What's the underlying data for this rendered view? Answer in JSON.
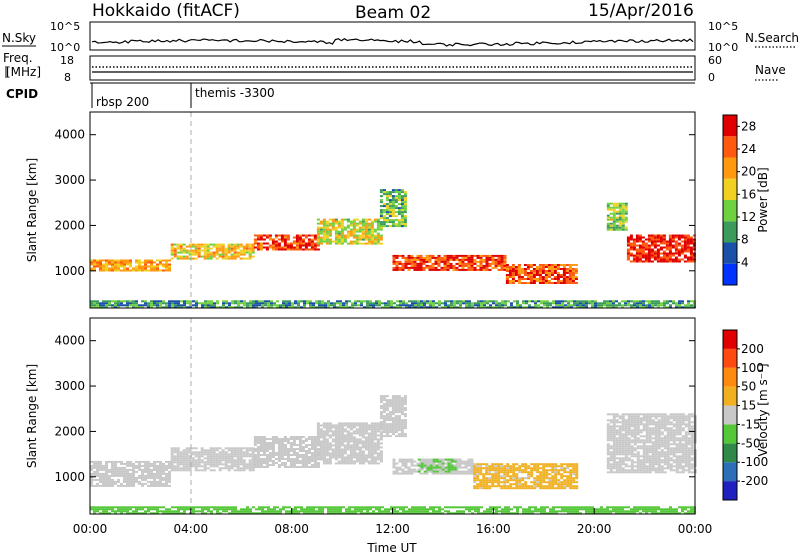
{
  "header": {
    "radar": "Hokkaido (fitACF)",
    "beam": "Beam 02",
    "date": "15/Apr/2016"
  },
  "strip_panels": {
    "nsky": {
      "left_label": "N.Sky",
      "left_ticks": [
        "10^5",
        "10^0"
      ],
      "right_label": "N.Search",
      "right_ticks": [
        "10^5",
        "10^0"
      ]
    },
    "freq": {
      "left_label_line1": "Freq.",
      "left_label_line2": "[MHz]",
      "left_ticks": [
        "18",
        "8"
      ],
      "right_label": "Nave",
      "right_ticks": [
        "60",
        "0"
      ]
    },
    "cpid": {
      "label": "CPID",
      "segments": [
        {
          "label": "rbsp 200",
          "start_hour": 0.0
        },
        {
          "label": "themis -3300",
          "start_hour": 4.0
        }
      ]
    }
  },
  "colors": {
    "power_scale": [
      "#0033ff",
      "#1a50a8",
      "#3b9b5b",
      "#6fd13f",
      "#f0d020",
      "#ff9a10",
      "#ff5a10",
      "#e00000"
    ],
    "velocity_scale": [
      "#2020c0",
      "#2a6fb8",
      "#2f8a4a",
      "#55c83a",
      "#c8c8c8",
      "#f0b020",
      "#ff8a10",
      "#ff4a10",
      "#e00000"
    ]
  },
  "chart_data": [
    {
      "type": "heatmap",
      "panel": "power",
      "xlabel": "",
      "ylabel": "Slant Range [km]",
      "xlim_hours": [
        0,
        24
      ],
      "ylim": [
        180,
        4500
      ],
      "y_ticks": [
        1000,
        2000,
        3000,
        4000
      ],
      "colorbar": {
        "label": "Power [dB]",
        "ticks": [
          "4",
          "8",
          "12",
          "16",
          "20",
          "24",
          "28"
        ],
        "range": [
          0,
          30
        ]
      },
      "echo_regions": [
        {
          "t_start": 0.0,
          "t_end": 3.2,
          "range_low": 1000,
          "range_high": 1250,
          "power": 20
        },
        {
          "t_start": 3.2,
          "t_end": 6.5,
          "range_low": 1250,
          "range_high": 1600,
          "power": 18
        },
        {
          "t_start": 6.5,
          "t_end": 9.0,
          "range_low": 1450,
          "range_high": 1800,
          "power": 26
        },
        {
          "t_start": 9.0,
          "t_end": 11.5,
          "range_low": 1600,
          "range_high": 2150,
          "power": 16
        },
        {
          "t_start": 11.5,
          "t_end": 12.5,
          "range_low": 2000,
          "range_high": 2800,
          "power": 12
        },
        {
          "t_start": 12.0,
          "t_end": 16.5,
          "range_low": 1000,
          "range_high": 1350,
          "power": 26
        },
        {
          "t_start": 16.5,
          "t_end": 19.3,
          "range_low": 750,
          "range_high": 1150,
          "power": 24
        },
        {
          "t_start": 20.5,
          "t_end": 21.3,
          "range_low": 1900,
          "range_high": 2500,
          "power": 14
        },
        {
          "t_start": 21.3,
          "t_end": 24.0,
          "range_low": 1200,
          "range_high": 1800,
          "power": 28
        },
        {
          "t_start": 0.0,
          "t_end": 24.0,
          "range_low": 200,
          "range_high": 350,
          "power": 10
        }
      ]
    },
    {
      "type": "heatmap",
      "panel": "velocity",
      "xlabel": "Time UT",
      "ylabel": "Slant Range [km]",
      "xlim_hours": [
        0,
        24
      ],
      "x_ticks": [
        "00:00",
        "04:00",
        "08:00",
        "12:00",
        "16:00",
        "20:00",
        "00:00"
      ],
      "ylim": [
        180,
        4500
      ],
      "y_ticks": [
        1000,
        2000,
        3000,
        4000
      ],
      "colorbar": {
        "label": "Velocity [m s⁻¹]",
        "ticks": [
          "200",
          "100",
          "50",
          "15",
          "-15",
          "-50",
          "-100",
          "-200"
        ],
        "range": [
          -250,
          250
        ]
      },
      "echo_regions": [
        {
          "t_start": 0.0,
          "t_end": 3.2,
          "range_low": 800,
          "range_high": 1350,
          "velocity": 0
        },
        {
          "t_start": 3.2,
          "t_end": 6.5,
          "range_low": 1150,
          "range_high": 1650,
          "velocity": 0
        },
        {
          "t_start": 6.5,
          "t_end": 9.0,
          "range_low": 1200,
          "range_high": 1900,
          "velocity": 0
        },
        {
          "t_start": 9.0,
          "t_end": 11.5,
          "range_low": 1300,
          "range_high": 2200,
          "velocity": 0
        },
        {
          "t_start": 11.5,
          "t_end": 12.5,
          "range_low": 1900,
          "range_high": 2800,
          "velocity": 0
        },
        {
          "t_start": 12.0,
          "t_end": 15.2,
          "range_low": 1050,
          "range_high": 1400,
          "velocity": 0
        },
        {
          "t_start": 13.0,
          "t_end": 14.5,
          "range_low": 1100,
          "range_high": 1400,
          "velocity": -30
        },
        {
          "t_start": 15.2,
          "t_end": 19.3,
          "range_low": 750,
          "range_high": 1300,
          "velocity": 40
        },
        {
          "t_start": 20.5,
          "t_end": 24.0,
          "range_low": 1100,
          "range_high": 2400,
          "velocity": 0
        },
        {
          "t_start": 0.0,
          "t_end": 24.0,
          "range_low": 200,
          "range_high": 350,
          "velocity": -60
        }
      ]
    }
  ]
}
